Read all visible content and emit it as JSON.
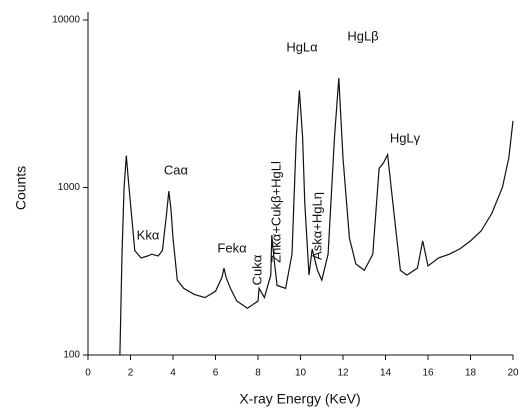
{
  "chart_data": {
    "type": "line",
    "x_label": "X-ray Energy (KeV)",
    "y_label": "Counts",
    "y_log_scale": true,
    "color": "#111111",
    "xlim": [
      0,
      20
    ],
    "xticks": [
      0,
      2,
      4,
      6,
      8,
      10,
      12,
      14,
      16,
      18,
      20
    ],
    "ylim": [
      100,
      10000
    ],
    "yticks": [
      100,
      1000,
      10000
    ],
    "x": [
      1.5,
      1.6,
      1.7,
      1.8,
      1.9,
      2.0,
      2.2,
      2.5,
      2.8,
      3.0,
      3.3,
      3.5,
      3.7,
      3.8,
      3.9,
      4.0,
      4.2,
      4.5,
      5.0,
      5.5,
      6.0,
      6.3,
      6.4,
      6.5,
      6.7,
      7.0,
      7.5,
      8.0,
      8.05,
      8.3,
      8.6,
      8.65,
      8.75,
      8.9,
      9.3,
      9.6,
      9.8,
      9.95,
      10.1,
      10.2,
      10.4,
      10.55,
      10.8,
      11.0,
      11.3,
      11.6,
      11.8,
      12.0,
      12.3,
      12.6,
      13.0,
      13.4,
      13.7,
      13.9,
      14.1,
      14.4,
      14.7,
      15.0,
      15.5,
      15.75,
      16.0,
      16.5,
      17.0,
      17.5,
      18.0,
      18.5,
      19.0,
      19.5,
      19.8,
      20.0
    ],
    "values": [
      100,
      400,
      1000,
      1550,
      1100,
      800,
      420,
      380,
      390,
      400,
      390,
      420,
      700,
      950,
      750,
      500,
      280,
      250,
      230,
      220,
      240,
      290,
      330,
      290,
      250,
      210,
      190,
      210,
      250,
      220,
      300,
      520,
      380,
      260,
      250,
      400,
      2000,
      3800,
      2000,
      800,
      300,
      430,
      320,
      280,
      400,
      2000,
      4500,
      1500,
      500,
      350,
      320,
      400,
      1300,
      1400,
      1570,
      700,
      320,
      300,
      330,
      480,
      340,
      380,
      400,
      430,
      480,
      550,
      700,
      1000,
      1500,
      2500
    ],
    "annotations": [
      "Kkα",
      "Caα",
      "Fekα",
      "Cukα",
      "Znkα+Cukβ+HgLl",
      "Askα+HgLη",
      "HgLα",
      "HgLβ",
      "HgLγ"
    ]
  }
}
